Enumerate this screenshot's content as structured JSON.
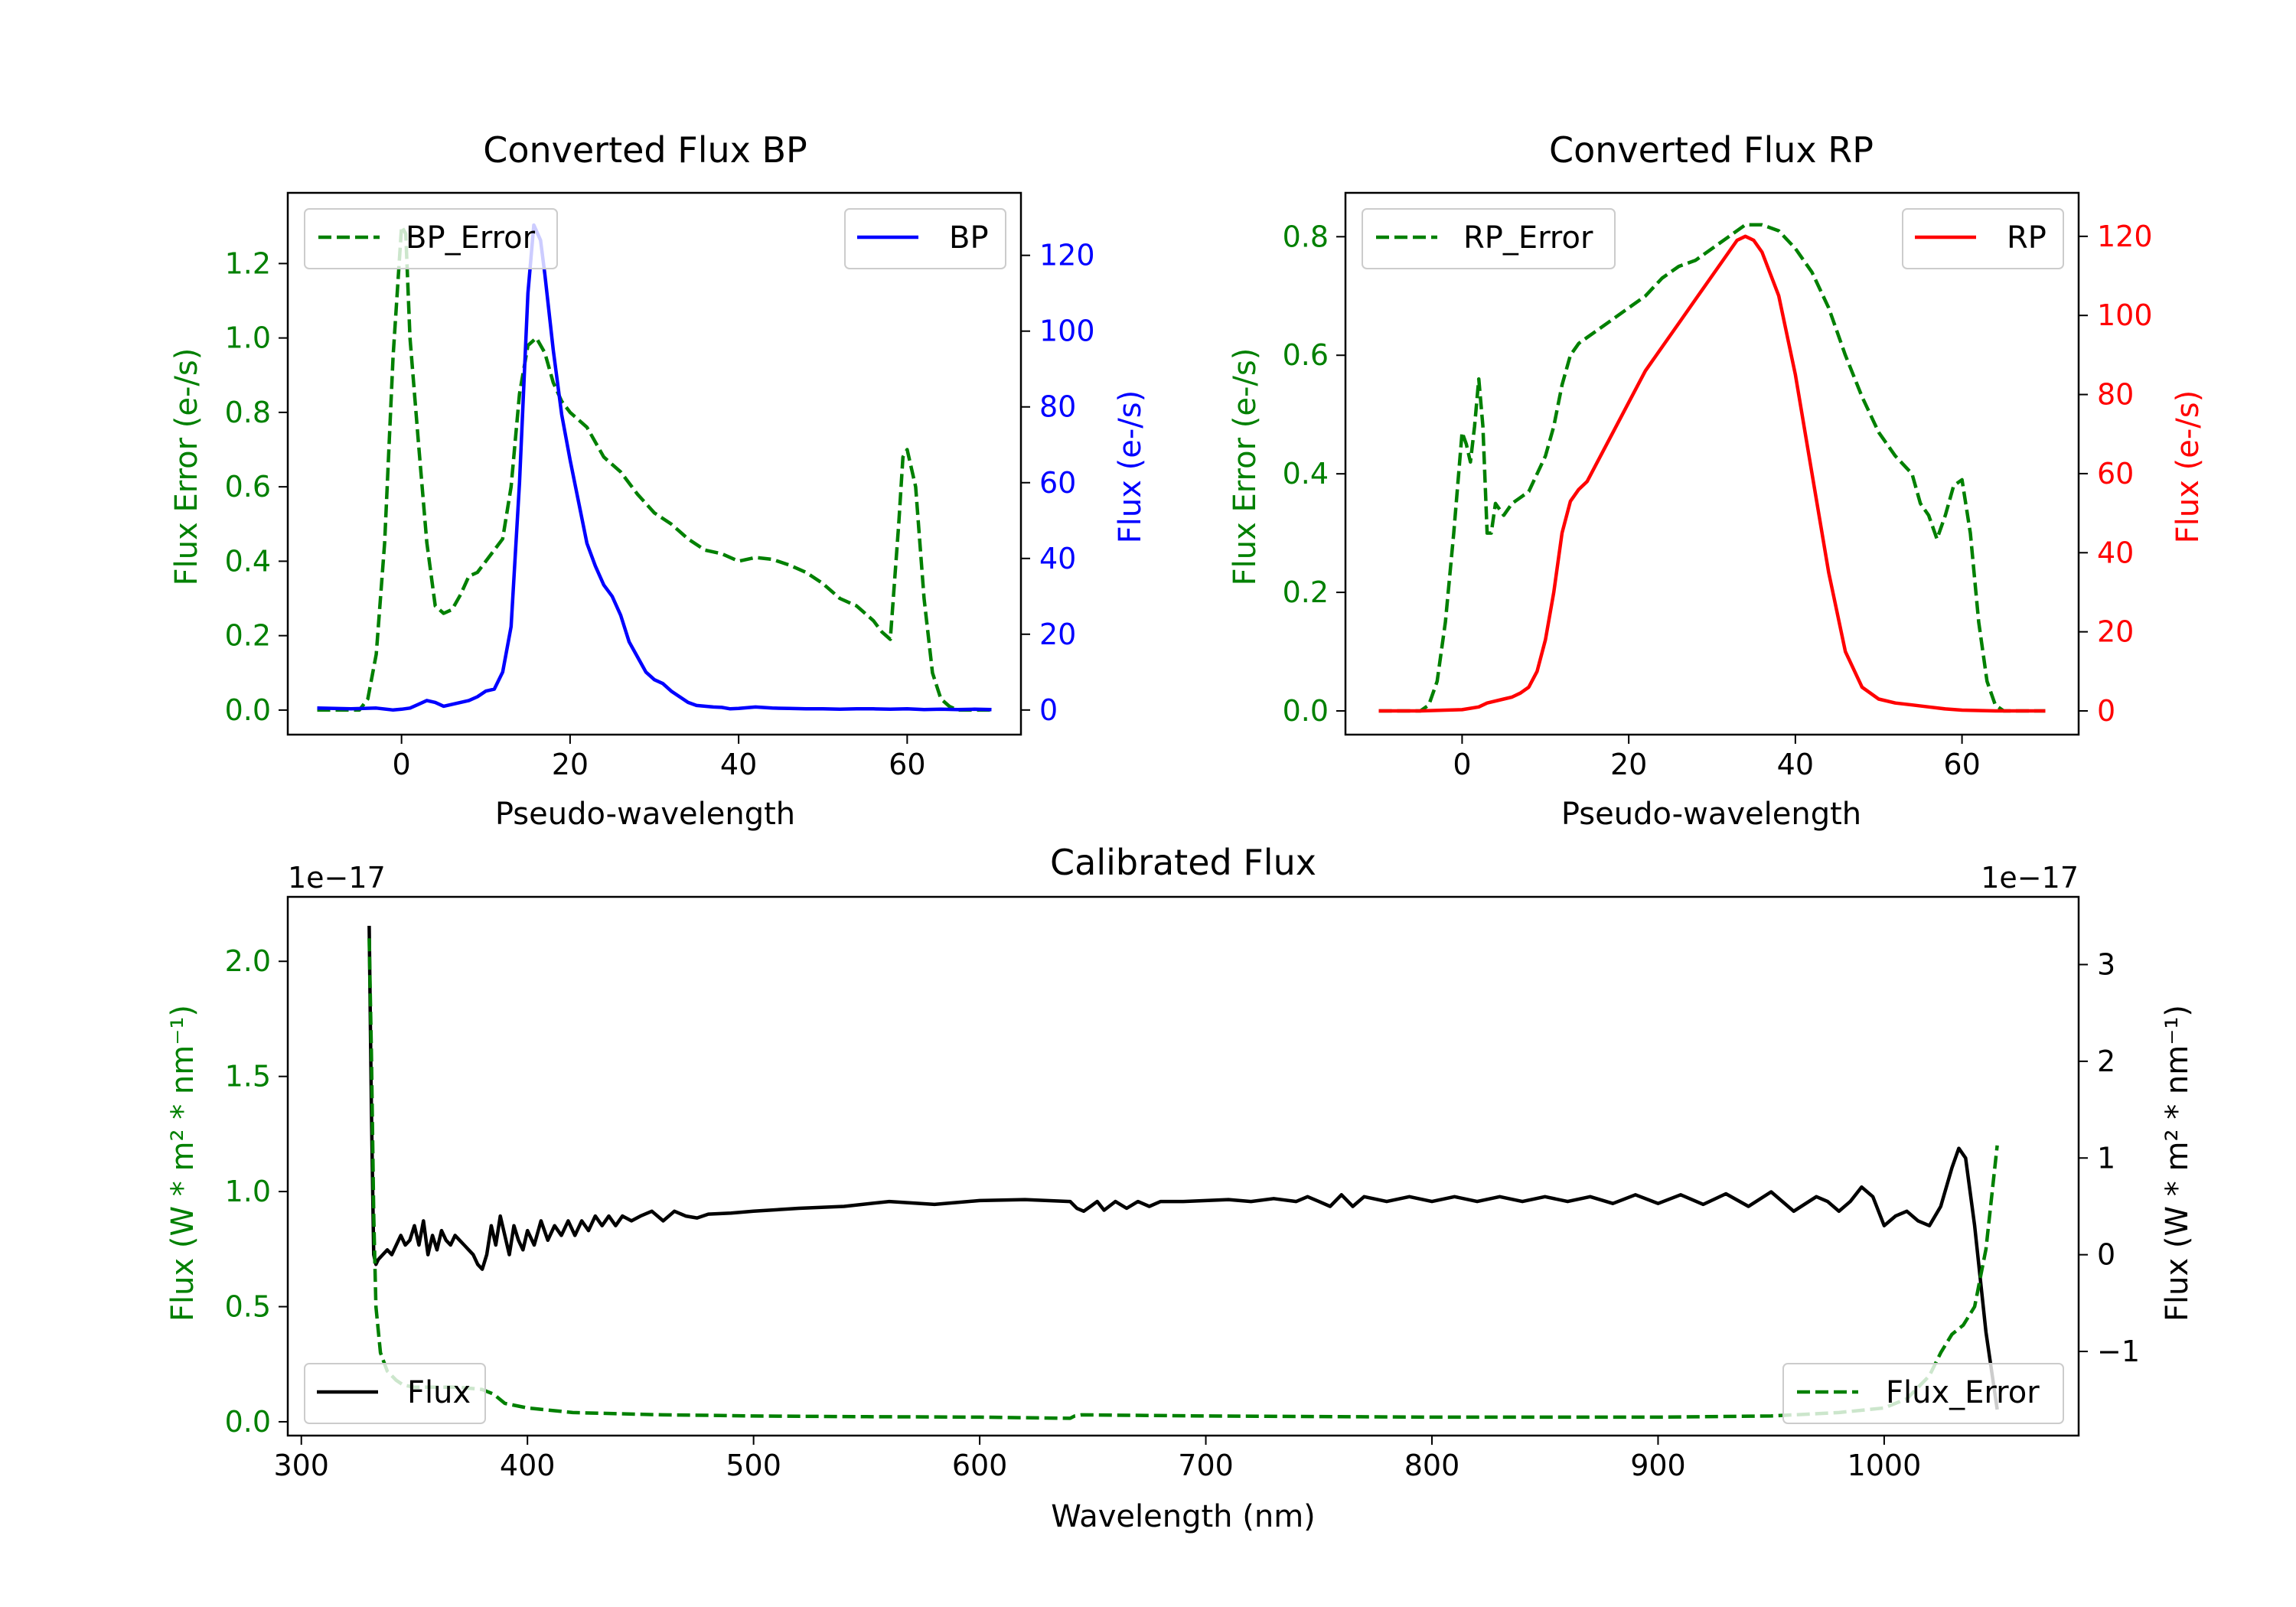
{
  "colors": {
    "bp": "#0000ff",
    "rp": "#ff0000",
    "error": "#008000",
    "flux": "#000000"
  },
  "chart_data": [
    {
      "id": "bp",
      "type": "line",
      "title": "Converted Flux BP",
      "xlabel": "Pseudo-wavelength",
      "ylabel_left": "Flux Error (e-/s)",
      "ylabel_right": "Flux (e-/s)",
      "xlim": [
        -13.5,
        73.5
      ],
      "ylim_left": [
        -0.066,
        1.39
      ],
      "ylim_right": [
        -6.5,
        136.5
      ],
      "xticks": [
        0,
        20,
        40,
        60
      ],
      "yticks_left": [
        0.0,
        0.2,
        0.4,
        0.6,
        0.8,
        1.0,
        1.2
      ],
      "yticks_left_labels": [
        "0.0",
        "0.2",
        "0.4",
        "0.6",
        "0.8",
        "1.0",
        "1.2"
      ],
      "yticks_right": [
        0,
        20,
        40,
        60,
        80,
        100,
        120
      ],
      "yticks_right_labels": [
        "0",
        "20",
        "40",
        "60",
        "80",
        "100",
        "120"
      ],
      "legend_left": "BP_Error",
      "legend_right": "BP",
      "series": [
        {
          "name": "BP_Error",
          "axis": "left",
          "style": "dashed",
          "x": [
            -10,
            -8,
            -5,
            -4,
            -3,
            -2,
            -1,
            0,
            0.5,
            1,
            2,
            3,
            4,
            5,
            6,
            7,
            8,
            9,
            10,
            12,
            13,
            14,
            15,
            16,
            17,
            18,
            19,
            20,
            22,
            24,
            26,
            28,
            30,
            32,
            34,
            36,
            38,
            40,
            42,
            44,
            46,
            48,
            50,
            52,
            54,
            56,
            57,
            58,
            59,
            59.5,
            60,
            61,
            62,
            63,
            64,
            65,
            66,
            68,
            70
          ],
          "y": [
            0.0,
            0.0,
            0.0,
            0.03,
            0.15,
            0.45,
            0.95,
            1.3,
            1.28,
            1.0,
            0.72,
            0.45,
            0.28,
            0.26,
            0.27,
            0.31,
            0.36,
            0.37,
            0.4,
            0.46,
            0.6,
            0.85,
            0.98,
            1.0,
            0.96,
            0.88,
            0.83,
            0.8,
            0.76,
            0.68,
            0.64,
            0.58,
            0.53,
            0.5,
            0.46,
            0.43,
            0.42,
            0.4,
            0.41,
            0.405,
            0.39,
            0.37,
            0.34,
            0.3,
            0.28,
            0.24,
            0.21,
            0.19,
            0.5,
            0.68,
            0.7,
            0.6,
            0.3,
            0.1,
            0.03,
            0.01,
            0.0,
            0.0,
            0.0
          ]
        },
        {
          "name": "BP",
          "axis": "right",
          "style": "solid",
          "x": [
            -10,
            -6,
            -3,
            -1,
            0,
            1,
            2,
            3,
            4,
            5,
            6,
            7,
            8,
            9,
            10,
            11,
            12,
            13,
            14,
            15,
            15.7,
            16.5,
            17,
            18,
            19,
            20,
            21,
            22,
            23,
            24,
            25,
            26,
            27,
            28,
            29,
            30,
            31,
            32,
            33,
            34,
            35,
            36,
            37,
            38,
            39,
            40,
            42,
            44,
            46,
            48,
            50,
            52,
            54,
            56,
            58,
            60,
            62,
            64,
            66,
            68,
            70
          ],
          "y": [
            0.5,
            0.3,
            0.5,
            0.0,
            0.2,
            0.5,
            1.5,
            2.5,
            2.0,
            1.0,
            1.5,
            2.0,
            2.5,
            3.5,
            5.0,
            5.5,
            10,
            22,
            60,
            110,
            128,
            124,
            115,
            95,
            78,
            66,
            55,
            44,
            38,
            33,
            30,
            25,
            18,
            14,
            10,
            8,
            7,
            5,
            3.5,
            2.0,
            1.2,
            1.0,
            0.8,
            0.7,
            0.3,
            0.4,
            0.8,
            0.5,
            0.4,
            0.3,
            0.3,
            0.2,
            0.3,
            0.3,
            0.2,
            0.3,
            0.1,
            0.2,
            0.1,
            0.2,
            0.1
          ]
        }
      ]
    },
    {
      "id": "rp",
      "type": "line",
      "title": "Converted Flux RP",
      "xlabel": "Pseudo-wavelength",
      "ylabel_left": "Flux Error (e-/s)",
      "ylabel_right": "Flux (e-/s)",
      "xlim": [
        -14,
        74
      ],
      "ylim_left": [
        -0.04,
        0.874
      ],
      "ylim_right": [
        -6.0,
        131.0
      ],
      "xticks": [
        0,
        20,
        40,
        60
      ],
      "yticks_left": [
        0.0,
        0.2,
        0.4,
        0.6,
        0.8
      ],
      "yticks_left_labels": [
        "0.0",
        "0.2",
        "0.4",
        "0.6",
        "0.8"
      ],
      "yticks_right": [
        0,
        20,
        40,
        60,
        80,
        100,
        120
      ],
      "yticks_right_labels": [
        "0",
        "20",
        "40",
        "60",
        "80",
        "100",
        "120"
      ],
      "legend_left": "RP_Error",
      "legend_right": "RP",
      "series": [
        {
          "name": "RP_Error",
          "axis": "left",
          "style": "dashed",
          "x": [
            -10,
            -5,
            -4,
            -3,
            -2,
            -1,
            0,
            0.5,
            1,
            1.5,
            2,
            2.5,
            3,
            3.5,
            4,
            5,
            6,
            7,
            8,
            9,
            10,
            11,
            12,
            13,
            14,
            15,
            16,
            18,
            20,
            22,
            24,
            26,
            28,
            30,
            32,
            34,
            36,
            38,
            40,
            42,
            44,
            46,
            48,
            50,
            52,
            54,
            55,
            56,
            57,
            58,
            59,
            60,
            61,
            62,
            63,
            64,
            65,
            66,
            68,
            70
          ],
          "y": [
            0.0,
            0.0,
            0.01,
            0.05,
            0.15,
            0.3,
            0.47,
            0.45,
            0.42,
            0.48,
            0.56,
            0.48,
            0.3,
            0.3,
            0.35,
            0.33,
            0.35,
            0.36,
            0.37,
            0.4,
            0.43,
            0.48,
            0.55,
            0.6,
            0.62,
            0.63,
            0.64,
            0.66,
            0.68,
            0.7,
            0.73,
            0.75,
            0.76,
            0.78,
            0.8,
            0.82,
            0.82,
            0.81,
            0.78,
            0.74,
            0.68,
            0.6,
            0.53,
            0.47,
            0.43,
            0.4,
            0.35,
            0.33,
            0.29,
            0.33,
            0.38,
            0.39,
            0.3,
            0.15,
            0.05,
            0.01,
            0.0,
            0.0,
            0.0,
            0.0
          ]
        },
        {
          "name": "RP",
          "axis": "right",
          "style": "solid",
          "x": [
            -10,
            -5,
            -2,
            0,
            2,
            3,
            5,
            6,
            7,
            8,
            9,
            10,
            11,
            12,
            13,
            14,
            15,
            16,
            18,
            20,
            22,
            24,
            26,
            28,
            30,
            32,
            33,
            34,
            35,
            36,
            38,
            40,
            42,
            44,
            46,
            48,
            50,
            52,
            54,
            56,
            58,
            60,
            62,
            64,
            66,
            68,
            70
          ],
          "y": [
            0,
            0,
            0.2,
            0.3,
            1.0,
            2.0,
            3.0,
            3.5,
            4.5,
            6.0,
            10,
            18,
            30,
            45,
            53,
            56,
            58,
            62,
            70,
            78,
            86,
            92,
            98,
            104,
            110,
            116,
            119,
            120,
            119,
            116,
            105,
            85,
            60,
            35,
            15,
            6.0,
            3.0,
            2.0,
            1.5,
            1.0,
            0.5,
            0.2,
            0.1,
            0.0,
            0.0,
            0.0,
            0.0
          ]
        }
      ]
    },
    {
      "id": "calibrated",
      "type": "line",
      "title": "Calibrated Flux",
      "xlabel": "Wavelength (nm)",
      "ylabel_left": "Flux (W * m² * nm⁻¹)",
      "ylabel_right": "Flux (W * m² * nm⁻¹)",
      "offset_left": "1e−17",
      "offset_right": "1e−17",
      "xlim": [
        294,
        1086
      ],
      "ylim_left": [
        -0.06,
        2.28
      ],
      "ylim_right": [
        -1.87,
        3.7
      ],
      "xticks": [
        300,
        400,
        500,
        600,
        700,
        800,
        900,
        1000
      ],
      "yticks_left": [
        0.0,
        0.5,
        1.0,
        1.5,
        2.0
      ],
      "yticks_left_labels": [
        "0.0",
        "0.5",
        "1.0",
        "1.5",
        "2.0"
      ],
      "yticks_right": [
        -1,
        0,
        1,
        2,
        3
      ],
      "yticks_right_labels": [
        "−1",
        "0",
        "1",
        "2",
        "3"
      ],
      "legend_left": "Flux",
      "legend_right": "Flux_Error",
      "series": [
        {
          "name": "Flux",
          "axis": "right",
          "style": "solid",
          "x": [
            330,
            331,
            332,
            333,
            334,
            336,
            338,
            340,
            342,
            344,
            346,
            348,
            350,
            352,
            354,
            356,
            358,
            360,
            362,
            364,
            366,
            368,
            370,
            372,
            374,
            376,
            378,
            380,
            382,
            384,
            386,
            388,
            390,
            392,
            394,
            396,
            398,
            400,
            403,
            406,
            409,
            412,
            415,
            418,
            421,
            424,
            427,
            430,
            433,
            436,
            439,
            442,
            446,
            450,
            455,
            460,
            465,
            470,
            475,
            480,
            490,
            500,
            520,
            540,
            560,
            580,
            600,
            620,
            640,
            643,
            646,
            649,
            652,
            655,
            660,
            665,
            670,
            675,
            680,
            690,
            700,
            710,
            720,
            730,
            740,
            745,
            750,
            755,
            760,
            765,
            770,
            780,
            790,
            800,
            810,
            820,
            830,
            840,
            850,
            860,
            870,
            880,
            890,
            900,
            910,
            920,
            930,
            940,
            950,
            960,
            970,
            975,
            980,
            985,
            990,
            995,
            1000,
            1005,
            1010,
            1015,
            1020,
            1025,
            1030,
            1033,
            1036,
            1040,
            1045,
            1050
          ],
          "y": [
            3.4,
            1.5,
            0.0,
            -0.1,
            -0.05,
            0.0,
            0.05,
            0.0,
            0.1,
            0.2,
            0.1,
            0.15,
            0.3,
            0.1,
            0.35,
            0.0,
            0.2,
            0.05,
            0.25,
            0.15,
            0.1,
            0.2,
            0.15,
            0.1,
            0.05,
            0.0,
            -0.1,
            -0.15,
            0.0,
            0.3,
            0.1,
            0.4,
            0.2,
            0.0,
            0.3,
            0.15,
            0.05,
            0.25,
            0.1,
            0.35,
            0.15,
            0.3,
            0.2,
            0.35,
            0.2,
            0.35,
            0.25,
            0.4,
            0.3,
            0.4,
            0.3,
            0.4,
            0.35,
            0.4,
            0.45,
            0.35,
            0.45,
            0.4,
            0.38,
            0.42,
            0.43,
            0.45,
            0.48,
            0.5,
            0.55,
            0.52,
            0.56,
            0.57,
            0.55,
            0.48,
            0.45,
            0.5,
            0.55,
            0.46,
            0.55,
            0.48,
            0.55,
            0.5,
            0.55,
            0.55,
            0.56,
            0.57,
            0.55,
            0.58,
            0.55,
            0.6,
            0.55,
            0.5,
            0.62,
            0.5,
            0.6,
            0.55,
            0.6,
            0.55,
            0.6,
            0.55,
            0.6,
            0.55,
            0.6,
            0.55,
            0.6,
            0.53,
            0.62,
            0.53,
            0.62,
            0.52,
            0.63,
            0.5,
            0.65,
            0.45,
            0.6,
            0.55,
            0.45,
            0.55,
            0.7,
            0.6,
            0.3,
            0.4,
            0.45,
            0.35,
            0.3,
            0.5,
            0.9,
            1.1,
            1.0,
            0.3,
            -0.8,
            -1.6
          ]
        },
        {
          "name": "Flux_Error",
          "axis": "left",
          "style": "dashed",
          "x": [
            330,
            331,
            332,
            333,
            335,
            338,
            342,
            345,
            350,
            360,
            370,
            380,
            385,
            390,
            400,
            420,
            440,
            460,
            480,
            500,
            550,
            600,
            640,
            642,
            645,
            700,
            800,
            900,
            950,
            980,
            1000,
            1010,
            1020,
            1025,
            1030,
            1035,
            1040,
            1045,
            1050
          ],
          "y": [
            2.1,
            1.6,
            0.9,
            0.5,
            0.3,
            0.22,
            0.18,
            0.16,
            0.15,
            0.15,
            0.15,
            0.14,
            0.12,
            0.08,
            0.06,
            0.04,
            0.035,
            0.03,
            0.028,
            0.025,
            0.022,
            0.02,
            0.015,
            0.025,
            0.03,
            0.025,
            0.02,
            0.02,
            0.025,
            0.04,
            0.06,
            0.1,
            0.2,
            0.3,
            0.38,
            0.42,
            0.5,
            0.75,
            1.2
          ]
        }
      ]
    }
  ]
}
